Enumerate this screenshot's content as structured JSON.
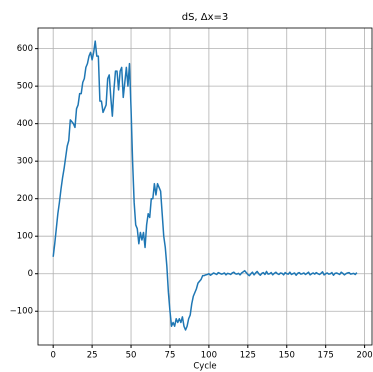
{
  "chart_data": {
    "type": "line",
    "title": "dS, Δx=3",
    "xlabel": "Cycle",
    "x": [
      0,
      1,
      2,
      3,
      4,
      5,
      6,
      7,
      8,
      9,
      10,
      11,
      12,
      13,
      14,
      15,
      16,
      17,
      18,
      19,
      20,
      21,
      22,
      23,
      24,
      25,
      26,
      27,
      28,
      29,
      30,
      31,
      32,
      33,
      34,
      35,
      36,
      37,
      38,
      39,
      40,
      41,
      42,
      43,
      44,
      45,
      46,
      47,
      48,
      49,
      50,
      51,
      52,
      53,
      54,
      55,
      56,
      57,
      58,
      59,
      60,
      61,
      62,
      63,
      64,
      65,
      66,
      67,
      68,
      69,
      70,
      71,
      72,
      73,
      74,
      75,
      76,
      77,
      78,
      79,
      80,
      81,
      82,
      83,
      84,
      85,
      86,
      87,
      88,
      89,
      90,
      91,
      92,
      93,
      94,
      95,
      96,
      97,
      98,
      99,
      100,
      101,
      102,
      103,
      104,
      105,
      106,
      107,
      108,
      109,
      110,
      111,
      112,
      113,
      114,
      115,
      116,
      117,
      118,
      119,
      120,
      121,
      122,
      123,
      124,
      125,
      126,
      127,
      128,
      129,
      130,
      131,
      132,
      133,
      134,
      135,
      136,
      137,
      138,
      139,
      140,
      141,
      142,
      143,
      144,
      145,
      146,
      147,
      148,
      149,
      150,
      151,
      152,
      153,
      154,
      155,
      156,
      157,
      158,
      159,
      160,
      161,
      162,
      163,
      164,
      165,
      166,
      167,
      168,
      169,
      170,
      171,
      172,
      173,
      174,
      175,
      176,
      177,
      178,
      179,
      180,
      181,
      182,
      183,
      184,
      185,
      186,
      187,
      188,
      189,
      190,
      191,
      192,
      193,
      194,
      195
    ],
    "series": [
      {
        "color": "#1f77b4",
        "values": [
          45,
          80,
          120,
          160,
          190,
          225,
          255,
          280,
          310,
          340,
          355,
          410,
          405,
          400,
          390,
          440,
          450,
          480,
          480,
          510,
          520,
          550,
          560,
          580,
          590,
          570,
          590,
          620,
          580,
          580,
          460,
          460,
          430,
          440,
          450,
          520,
          530,
          470,
          420,
          490,
          540,
          540,
          490,
          540,
          550,
          470,
          510,
          550,
          500,
          560,
          440,
          300,
          190,
          130,
          120,
          80,
          110,
          90,
          110,
          70,
          130,
          160,
          150,
          200,
          200,
          240,
          210,
          240,
          230,
          220,
          160,
          100,
          70,
          20,
          -50,
          -100,
          -140,
          -130,
          -140,
          -120,
          -130,
          -120,
          -130,
          -115,
          -140,
          -150,
          -140,
          -120,
          -110,
          -80,
          -60,
          -50,
          -40,
          -25,
          -20,
          -15,
          -5,
          -5,
          -3,
          -2,
          0,
          -4,
          -1,
          2,
          0,
          -2,
          3,
          1,
          -1,
          0,
          2,
          -3,
          1,
          0,
          -2,
          2,
          4,
          0,
          -1,
          1,
          -3,
          2,
          5,
          8,
          3,
          -2,
          -5,
          0,
          4,
          -3,
          2,
          6,
          0,
          -4,
          1,
          3,
          -2,
          6,
          -1,
          0,
          3,
          -3,
          1,
          4,
          0,
          -2,
          2,
          1,
          -3,
          3,
          0,
          -1,
          4,
          -2,
          0,
          2,
          -4,
          1,
          3,
          -1,
          0,
          2,
          -2,
          1,
          4,
          -3,
          0,
          2,
          -1,
          3,
          0,
          -2,
          1,
          5,
          -3,
          0,
          2,
          -1,
          0,
          3,
          -4,
          1,
          2,
          0,
          -2,
          4,
          1,
          -3,
          0,
          2,
          3,
          -1,
          0,
          1,
          -2,
          3
        ]
      }
    ],
    "xlim": [
      -9.75,
      204.75
    ],
    "xticks": [
      0,
      25,
      50,
      75,
      100,
      125,
      150,
      175,
      200
    ],
    "ylim": [
      -190,
      655
    ],
    "yticks": [
      {
        "value": -100,
        "label": "−100"
      },
      0,
      100,
      200,
      300,
      400,
      500,
      600
    ],
    "grid": true
  }
}
